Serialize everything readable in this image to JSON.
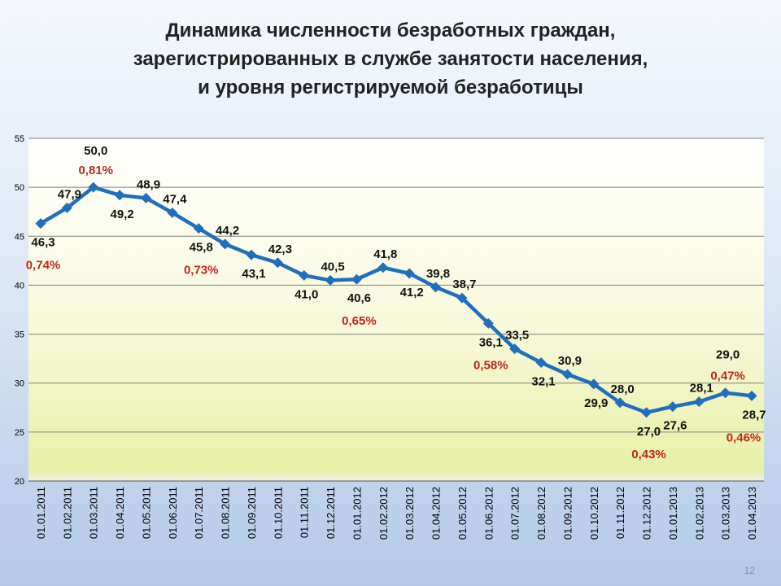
{
  "title_lines": [
    "Динамика численности безработных граждан,",
    "зарегистрированных в службе занятости населения,",
    "и уровня регистрируемой безработицы"
  ],
  "page_number": "12",
  "colors": {
    "line": "#1f6fbd",
    "percent_text": "#c0261e",
    "gridline": "#7f7f7f"
  },
  "chart_data": {
    "type": "line",
    "title": "Динамика численности безработных граждан, зарегистрированных в службе занятости населения, и уровня регистрируемой безработицы",
    "xlabel": "",
    "ylabel": "",
    "ylim": [
      20,
      55
    ],
    "y_ticks": [
      "20",
      "25",
      "30",
      "35",
      "40",
      "45",
      "50",
      "55"
    ],
    "grid": true,
    "legend": "none",
    "categories": [
      "01.01.2011",
      "01.02.2011",
      "01.03.2011",
      "01.04.2011",
      "01.05.2011",
      "01.06.2011",
      "01.07.2011",
      "01.08.2011",
      "01.09.2011",
      "01.10.2011",
      "01.11.2011",
      "01.12.2011",
      "01.01.2012",
      "01.02.2012",
      "01.03.2012",
      "01.04.2012",
      "01.05.2012",
      "01.06.2012",
      "01.07.2012",
      "01.08.2012",
      "01.09.2012",
      "01.10.2012",
      "01.11.2012",
      "01.12.2012",
      "01.01.2013",
      "01.02.2013",
      "01.03.2013",
      "01.04.2013"
    ],
    "values": [
      46.3,
      47.9,
      50.0,
      49.2,
      48.9,
      47.4,
      45.8,
      44.2,
      43.1,
      42.3,
      41.0,
      40.5,
      40.6,
      41.8,
      41.2,
      39.8,
      38.7,
      36.1,
      33.5,
      32.1,
      30.9,
      29.9,
      28.0,
      27.0,
      27.6,
      28.1,
      29.0,
      28.7
    ],
    "value_labels": [
      "46,3",
      "47,9",
      "50,0",
      "49,2",
      "48,9",
      "47,4",
      "45,8",
      "44,2",
      "43,1",
      "42,3",
      "41,0",
      "40,5",
      "40,6",
      "41,8",
      "41,2",
      "39,8",
      "38,7",
      "36,1",
      "33,5",
      "32,1",
      "30,9",
      "29,9",
      "28,0",
      "27,0",
      "27,6",
      "28,1",
      "29,0",
      "28,7"
    ],
    "unemployment_rate_labels": [
      {
        "index": 0,
        "label": "0,74%"
      },
      {
        "index": 2,
        "label": "0,81%"
      },
      {
        "index": 6,
        "label": "0,73%"
      },
      {
        "index": 12,
        "label": "0,65%"
      },
      {
        "index": 17,
        "label": "0,58%"
      },
      {
        "index": 23,
        "label": "0,43%"
      },
      {
        "index": 26,
        "label": "0,47%"
      },
      {
        "index": 27,
        "label": "0,46%"
      }
    ]
  }
}
